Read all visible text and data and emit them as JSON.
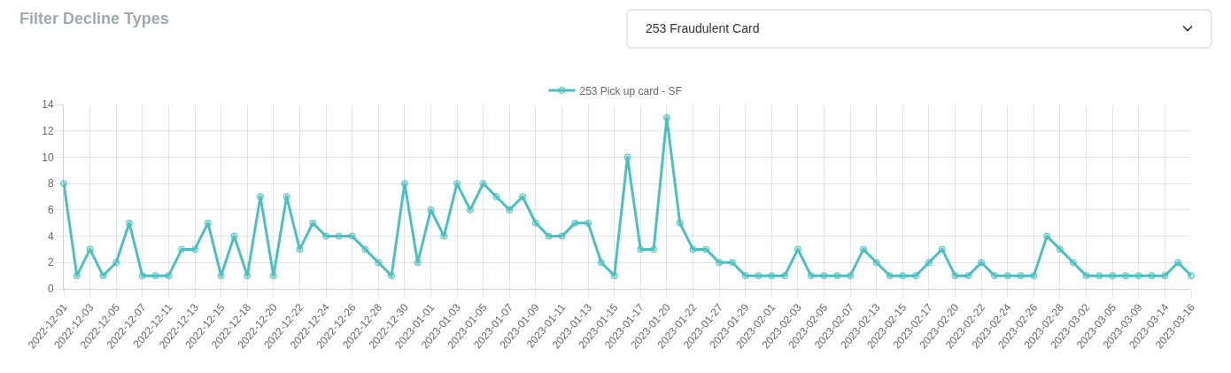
{
  "chart_data": {
    "type": "line",
    "title": "Filter Decline Types",
    "annotations": [
      "253 Fraudulent Card"
    ],
    "categories": [
      "2022-12-01",
      null,
      "2022-12-03",
      null,
      "2022-12-05",
      null,
      "2022-12-07",
      null,
      "2022-12-11",
      null,
      "2022-12-13",
      null,
      "2022-12-15",
      null,
      "2022-12-18",
      null,
      "2022-12-20",
      null,
      "2022-12-22",
      null,
      "2022-12-24",
      null,
      "2022-12-26",
      null,
      "2022-12-28",
      null,
      "2022-12-30",
      null,
      "2023-01-01",
      null,
      "2023-01-03",
      null,
      "2023-01-05",
      null,
      "2023-01-07",
      null,
      "2023-01-09",
      null,
      "2023-01-11",
      null,
      "2023-01-13",
      null,
      "2023-01-15",
      null,
      "2023-01-17",
      null,
      "2023-01-20",
      null,
      "2023-01-22",
      null,
      "2023-01-27",
      null,
      "2023-01-29",
      null,
      "2023-02-01",
      null,
      "2023-02-03",
      null,
      "2023-02-05",
      null,
      "2023-02-07",
      null,
      "2023-02-13",
      null,
      "2023-02-15",
      null,
      "2023-02-17",
      null,
      "2023-02-20",
      null,
      "2023-02-22",
      null,
      "2023-02-24",
      null,
      "2023-02-26",
      null,
      "2023-02-28",
      null,
      "2023-03-02",
      null,
      "2023-03-05",
      null,
      "2023-03-09",
      null,
      "2023-03-14",
      null,
      "2023-03-16"
    ],
    "series": [
      {
        "name": "253 Pick up card - SF",
        "color": "#4bc0c0",
        "values": [
          8,
          1,
          3,
          1,
          2,
          5,
          1,
          1,
          1,
          3,
          3,
          5,
          1,
          4,
          1,
          7,
          1,
          7,
          3,
          5,
          4,
          4,
          4,
          3,
          2,
          1,
          8,
          2,
          6,
          4,
          8,
          6,
          8,
          7,
          6,
          7,
          5,
          4,
          4,
          5,
          5,
          2,
          1,
          10,
          3,
          3,
          13,
          5,
          3,
          3,
          2,
          2,
          1,
          1,
          1,
          1,
          3,
          1,
          1,
          1,
          1,
          3,
          2,
          1,
          1,
          1,
          2,
          3,
          1,
          1,
          2,
          1,
          1,
          1,
          1,
          4,
          3,
          2,
          1,
          1,
          1,
          1,
          1,
          1,
          1,
          2,
          1
        ]
      }
    ],
    "ylim": [
      0,
      14
    ],
    "yticks": [
      0,
      2,
      4,
      6,
      8,
      10,
      12,
      14
    ],
    "grid": true,
    "legend": "top",
    "marker": "circle",
    "line_style": "solid"
  }
}
